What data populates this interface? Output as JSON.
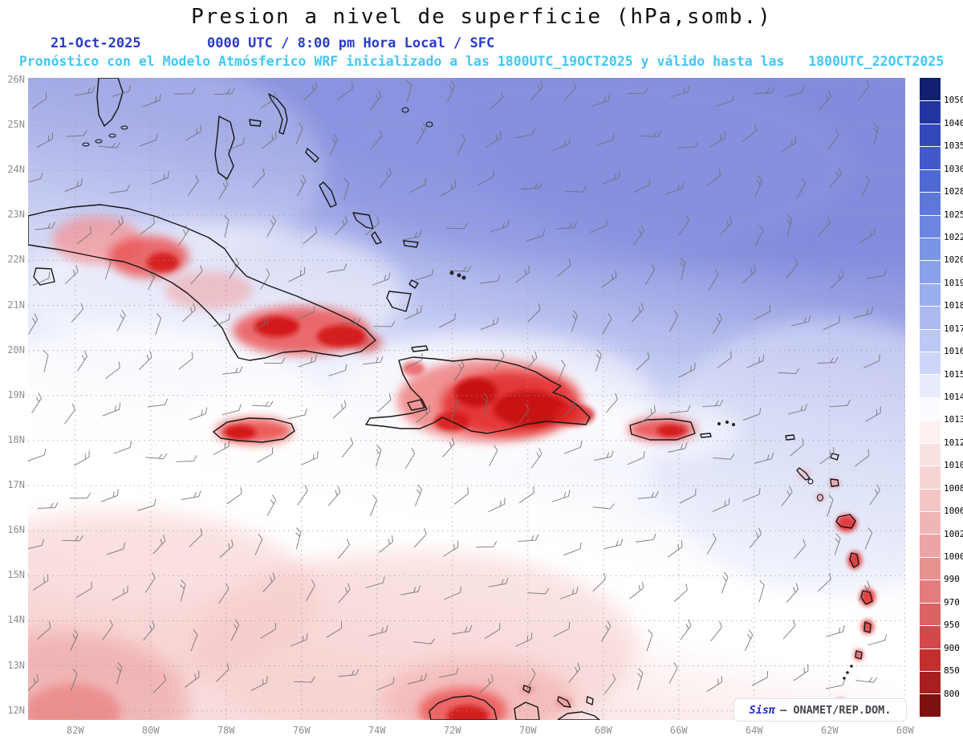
{
  "header": {
    "title": "Presion a nivel de superficie (hPa,somb.)",
    "date": "21-Oct-2025",
    "time_line": "0000 UTC / 8:00 pm Hora Local / SFC",
    "forecast_line": "Pronóstico con el Modelo Atmósferico WRF inicializado a las 1800UTC_19OCT2025 y válido hasta las   1800UTC_22OCT2025"
  },
  "map": {
    "lat_labels": [
      "26N",
      "25N",
      "24N",
      "23N",
      "22N",
      "21N",
      "20N",
      "19N",
      "18N",
      "17N",
      "16N",
      "15N",
      "14N",
      "13N",
      "12N"
    ],
    "lon_labels": [
      "82W",
      "80W",
      "78W",
      "76W",
      "74W",
      "72W",
      "70W",
      "68W",
      "66W",
      "64W",
      "62W",
      "60W"
    ]
  },
  "colorbar": {
    "unit": "hPa",
    "tick_labels": [
      "1050",
      "1040",
      "1035",
      "1030",
      "1028",
      "1025",
      "1022",
      "1020",
      "1019",
      "1018",
      "1017",
      "1016",
      "1015",
      "1014",
      "1013",
      "1012",
      "1010",
      "1008",
      "1006",
      "1002",
      "1000",
      "990",
      "970",
      "950",
      "900",
      "850",
      "800"
    ],
    "segment_colors": [
      "#10206e",
      "#2335a0",
      "#3348bb",
      "#4159c9",
      "#4f69d3",
      "#5d78da",
      "#6b86e0",
      "#7a94e6",
      "#8aa1ea",
      "#9aaeef",
      "#abbbf2",
      "#bcc8f5",
      "#cdd5f8",
      "#e8ebfa",
      "#fafaff",
      "#fdf0f0",
      "#fae2e2",
      "#f7d4d4",
      "#f4c5c5",
      "#f1b5b5",
      "#eda4a4",
      "#e89191",
      "#e37d7d",
      "#dc6363",
      "#d34949",
      "#c32e2e",
      "#a81f1f",
      "#7e1010"
    ]
  },
  "watermark": {
    "brand": "Sisπ",
    "suffix": "– ONAMET/REP.DOM."
  }
}
